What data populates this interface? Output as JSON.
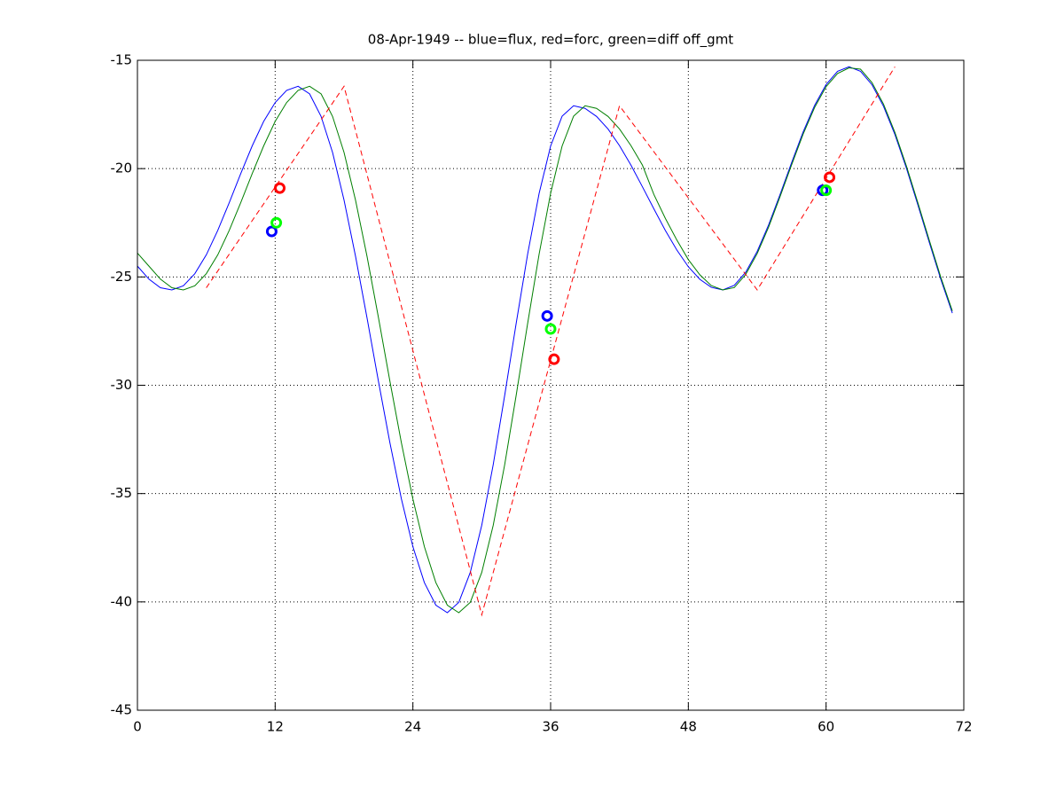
{
  "chart_data": {
    "type": "line",
    "title": "08-Apr-1949 -- blue=flux, red=forc, green=diff off_gmt",
    "xlim": [
      0,
      72
    ],
    "ylim": [
      -45,
      -15
    ],
    "xticks": [
      0,
      12,
      24,
      36,
      48,
      60,
      72
    ],
    "yticks": [
      -45,
      -40,
      -35,
      -30,
      -25,
      -20,
      -15
    ],
    "grid": true,
    "series": [
      {
        "color": "#0000ff",
        "linestyle": "solid",
        "x": [
          0,
          1,
          2,
          3,
          4,
          5,
          6,
          7,
          8,
          9,
          10,
          11,
          12,
          13,
          14,
          15,
          16,
          17,
          18,
          19,
          20,
          21,
          22,
          23,
          24,
          25,
          26,
          27,
          28,
          29,
          30,
          31,
          32,
          33,
          34,
          35,
          36,
          37,
          38,
          39,
          40,
          41,
          42,
          43,
          44,
          45,
          46,
          47,
          48,
          49,
          50,
          51,
          52,
          53,
          54,
          55,
          56,
          57,
          58,
          59,
          60,
          61,
          62,
          63,
          64,
          65,
          66,
          67,
          68,
          69,
          70,
          71
        ],
        "values": [
          -24.5,
          -25.1,
          -25.5,
          -25.6,
          -25.41,
          -24.85,
          -23.98,
          -22.85,
          -21.57,
          -20.23,
          -18.95,
          -17.82,
          -16.95,
          -16.39,
          -16.2,
          -16.55,
          -17.59,
          -19.25,
          -21.45,
          -24.04,
          -26.88,
          -29.82,
          -32.66,
          -35.25,
          -37.45,
          -39.11,
          -40.15,
          -40.5,
          -40.02,
          -38.64,
          -36.46,
          -33.66,
          -30.46,
          -27.14,
          -23.94,
          -21.14,
          -18.96,
          -17.58,
          -17.1,
          -17.22,
          -17.59,
          -18.17,
          -18.94,
          -19.84,
          -20.84,
          -21.86,
          -22.86,
          -23.76,
          -24.53,
          -25.11,
          -25.48,
          -25.6,
          -25.39,
          -24.78,
          -23.82,
          -22.59,
          -21.18,
          -19.72,
          -18.31,
          -17.08,
          -16.12,
          -15.51,
          -15.3,
          -15.51,
          -16.13,
          -17.12,
          -18.43,
          -19.98,
          -21.68,
          -23.42,
          -25.12,
          -26.67
        ]
      },
      {
        "color": "#007f00",
        "linestyle": "solid",
        "x": [
          0,
          1,
          2,
          3,
          4,
          5,
          6,
          7,
          8,
          9,
          10,
          11,
          12,
          13,
          14,
          15,
          16,
          17,
          18,
          19,
          20,
          21,
          22,
          23,
          24,
          25,
          26,
          27,
          28,
          29,
          30,
          31,
          32,
          33,
          34,
          35,
          36,
          37,
          38,
          39,
          40,
          41,
          42,
          43,
          44,
          45,
          46,
          47,
          48,
          49,
          50,
          51,
          52,
          53,
          54,
          55,
          56,
          57,
          58,
          59,
          60,
          61,
          62,
          63,
          64,
          65,
          66,
          67,
          68,
          69,
          70,
          71
        ],
        "values": [
          -23.9,
          -24.5,
          -25.1,
          -25.5,
          -25.6,
          -25.41,
          -24.85,
          -23.98,
          -22.85,
          -21.57,
          -20.23,
          -18.95,
          -17.82,
          -16.95,
          -16.39,
          -16.2,
          -16.55,
          -17.59,
          -19.25,
          -21.45,
          -24.04,
          -26.88,
          -29.82,
          -32.66,
          -35.25,
          -37.45,
          -39.11,
          -40.15,
          -40.5,
          -40.02,
          -38.64,
          -36.46,
          -33.66,
          -30.46,
          -27.14,
          -23.94,
          -21.14,
          -18.96,
          -17.58,
          -17.1,
          -17.22,
          -17.59,
          -18.17,
          -18.94,
          -19.84,
          -21.2,
          -22.3,
          -23.3,
          -24.2,
          -24.9,
          -25.4,
          -25.6,
          -25.49,
          -24.88,
          -23.92,
          -22.69,
          -21.28,
          -19.82,
          -18.41,
          -17.18,
          -16.22,
          -15.61,
          -15.35,
          -15.41,
          -16.03,
          -17.02,
          -18.33,
          -19.88,
          -21.58,
          -23.32,
          -25.02,
          -26.57
        ]
      },
      {
        "color": "#ff0000",
        "linestyle": "dashed",
        "x": [
          6,
          18,
          30,
          42,
          54,
          66
        ],
        "values": [
          -25.5,
          -16.2,
          -40.6,
          -17.1,
          -25.6,
          -15.3
        ]
      },
      {
        "color": "#0000ff",
        "linestyle": "none",
        "marker": "o",
        "x": [
          11.7,
          35.7,
          59.7
        ],
        "values": [
          -22.9,
          -26.8,
          -21.0
        ]
      },
      {
        "color": "#00ff00",
        "linestyle": "none",
        "marker": "o",
        "x": [
          12.1,
          36.0,
          60.0
        ],
        "values": [
          -22.5,
          -27.4,
          -21.0
        ]
      },
      {
        "color": "#ff0000",
        "linestyle": "none",
        "marker": "o",
        "x": [
          12.4,
          36.3,
          60.3
        ],
        "values": [
          -20.9,
          -28.8,
          -20.4
        ]
      }
    ]
  }
}
